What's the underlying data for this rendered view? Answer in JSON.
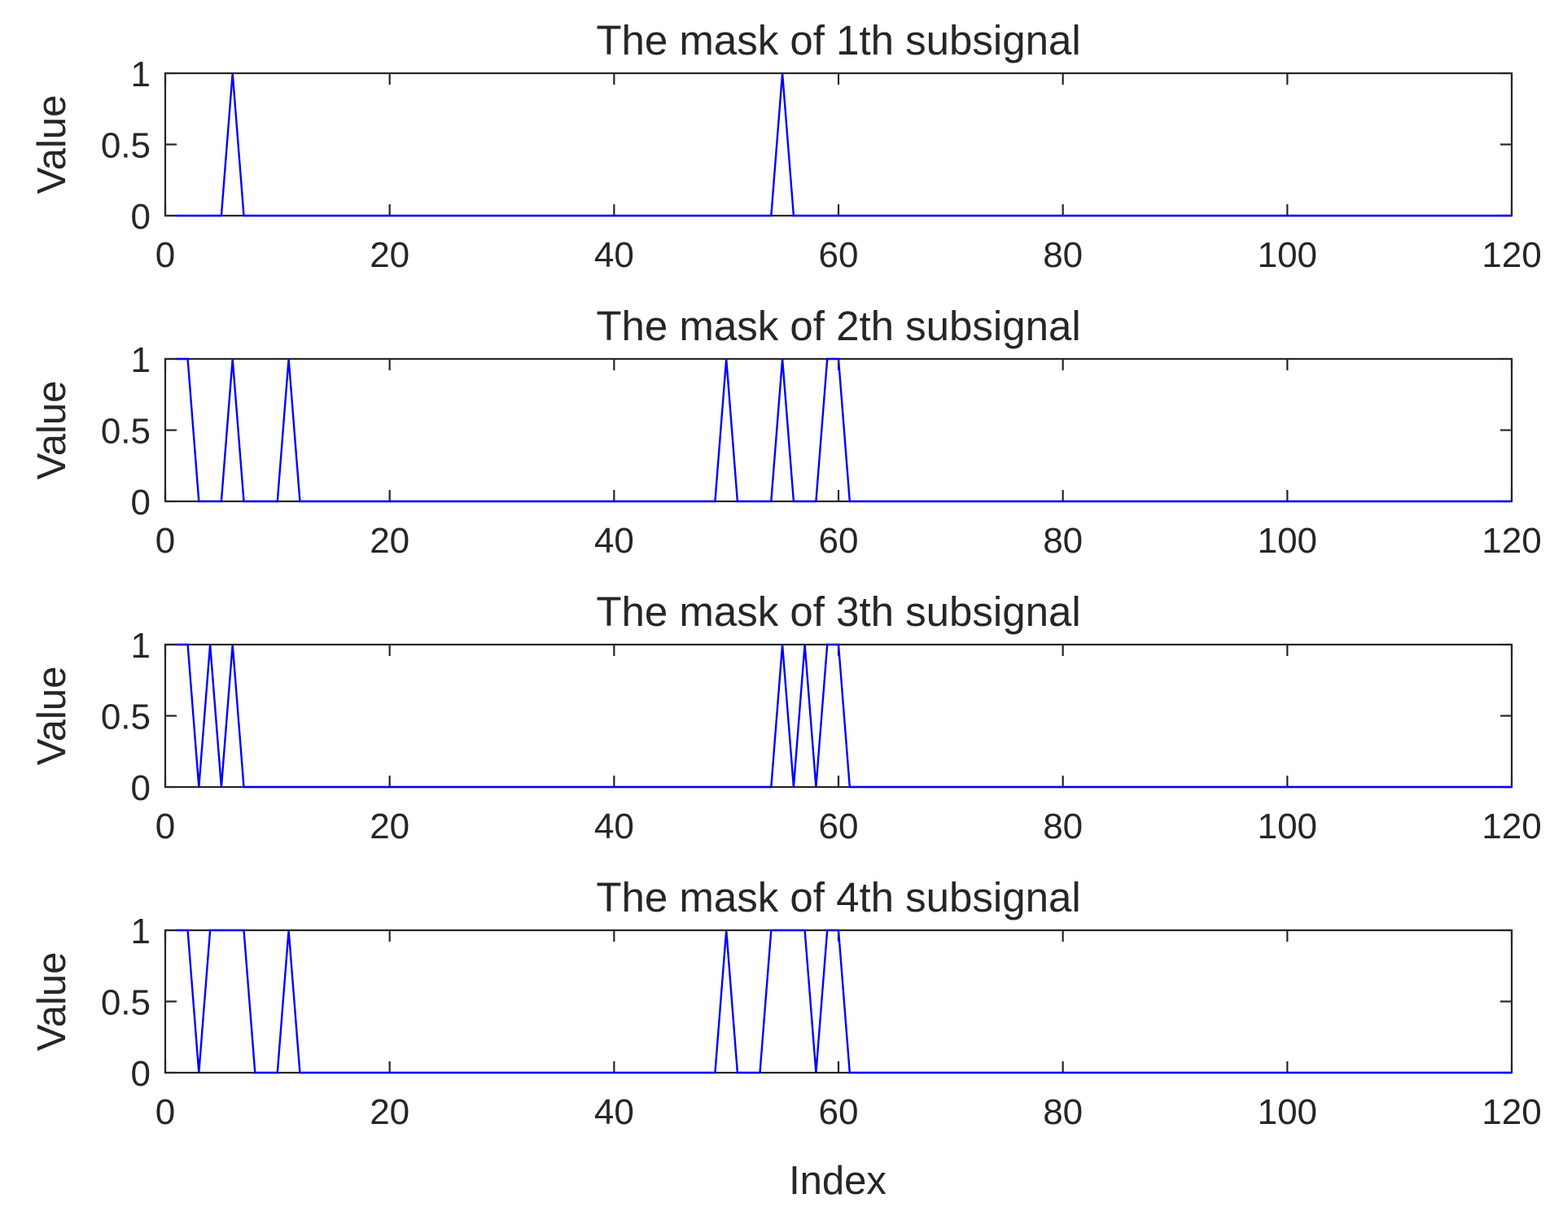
{
  "figure": {
    "xlabel": "Index",
    "line_color": "#0000ff",
    "axis_color": "#262626",
    "background": "#ffffff"
  },
  "chart_data": [
    {
      "type": "line",
      "title": "The mask of 1th subsignal",
      "xlabel": "",
      "ylabel": "Value",
      "xlim": [
        0,
        120
      ],
      "ylim": [
        0,
        1
      ],
      "xticks": [
        0,
        20,
        40,
        60,
        80,
        100,
        120
      ],
      "yticks": [
        0,
        0.5,
        1
      ],
      "xtick_labels": [
        "0",
        "20",
        "40",
        "60",
        "80",
        "100",
        "120"
      ],
      "ytick_labels": [
        "0",
        "0.5",
        "1"
      ],
      "grid": false,
      "x": [
        1,
        5,
        6,
        7,
        54,
        55,
        56,
        120
      ],
      "series": [
        {
          "color": "#0000ff",
          "values": [
            0,
            0,
            1,
            0,
            0,
            1,
            0,
            0
          ]
        }
      ]
    },
    {
      "type": "line",
      "title": "The mask of 2th subsignal",
      "xlabel": "",
      "ylabel": "Value",
      "xlim": [
        0,
        120
      ],
      "ylim": [
        0,
        1
      ],
      "xticks": [
        0,
        20,
        40,
        60,
        80,
        100,
        120
      ],
      "yticks": [
        0,
        0.5,
        1
      ],
      "xtick_labels": [
        "0",
        "20",
        "40",
        "60",
        "80",
        "100",
        "120"
      ],
      "ytick_labels": [
        "0",
        "0.5",
        "1"
      ],
      "grid": false,
      "x": [
        1,
        2,
        3,
        5,
        6,
        7,
        10,
        11,
        12,
        49,
        50,
        51,
        54,
        55,
        56,
        58,
        59,
        60,
        61,
        120
      ],
      "series": [
        {
          "color": "#0000ff",
          "values": [
            1,
            1,
            0,
            0,
            1,
            0,
            0,
            1,
            0,
            0,
            1,
            0,
            0,
            1,
            0,
            0,
            1,
            1,
            0,
            0
          ]
        }
      ]
    },
    {
      "type": "line",
      "title": "The mask of 3th subsignal",
      "xlabel": "",
      "ylabel": "Value",
      "xlim": [
        0,
        120
      ],
      "ylim": [
        0,
        1
      ],
      "xticks": [
        0,
        20,
        40,
        60,
        80,
        100,
        120
      ],
      "yticks": [
        0,
        0.5,
        1
      ],
      "xtick_labels": [
        "0",
        "20",
        "40",
        "60",
        "80",
        "100",
        "120"
      ],
      "ytick_labels": [
        "0",
        "0.5",
        "1"
      ],
      "grid": false,
      "x": [
        1,
        2,
        3,
        4,
        5,
        6,
        7,
        54,
        55,
        56,
        57,
        58,
        59,
        60,
        61,
        120
      ],
      "series": [
        {
          "color": "#0000ff",
          "values": [
            1,
            1,
            0,
            1,
            0,
            1,
            0,
            0,
            1,
            0,
            1,
            0,
            1,
            1,
            0,
            0
          ]
        }
      ]
    },
    {
      "type": "line",
      "title": "The mask of 4th subsignal",
      "xlabel": "Index",
      "ylabel": "Value",
      "xlim": [
        0,
        120
      ],
      "ylim": [
        0,
        1
      ],
      "xticks": [
        0,
        20,
        40,
        60,
        80,
        100,
        120
      ],
      "yticks": [
        0,
        0.5,
        1
      ],
      "xtick_labels": [
        "0",
        "20",
        "40",
        "60",
        "80",
        "100",
        "120"
      ],
      "ytick_labels": [
        "0",
        "0.5",
        "1"
      ],
      "grid": false,
      "x": [
        1,
        2,
        3,
        4,
        7,
        8,
        10,
        11,
        12,
        49,
        50,
        51,
        53,
        54,
        57,
        58,
        59,
        60,
        61,
        120
      ],
      "series": [
        {
          "color": "#0000ff",
          "values": [
            1,
            1,
            0,
            1,
            1,
            0,
            0,
            1,
            0,
            0,
            1,
            0,
            0,
            1,
            1,
            0,
            1,
            1,
            0,
            0
          ]
        }
      ]
    }
  ]
}
